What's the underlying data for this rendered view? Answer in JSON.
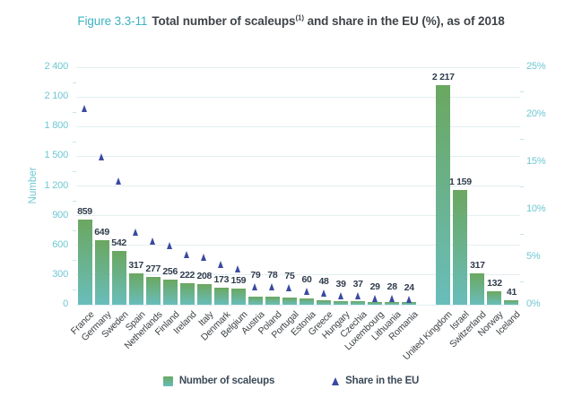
{
  "title": {
    "prefix": "Figure 3.3-11",
    "main": "Total number of scaleups",
    "superscript": "(1)",
    "suffix": " and share in the EU (%), as of 2018"
  },
  "axes": {
    "left": {
      "title": "Number",
      "ticks": [
        "0",
        "300",
        "600",
        "900",
        "1 200",
        "1 500",
        "1 800",
        "2 100",
        "2 400"
      ]
    },
    "right": {
      "ticks": [
        "0%",
        "5%",
        "10%",
        "15%",
        "20%",
        "25%"
      ]
    }
  },
  "legend": [
    {
      "label": "Number of scaleups",
      "marker": "square"
    },
    {
      "label": "Share in the EU",
      "marker": "triangle"
    }
  ],
  "colors": {
    "title_accent": "#3db2c2",
    "title_text": "#3f4449",
    "axis_teal": "#6ec7d2",
    "bar_top": "#6ba760",
    "bar_bottom": "#69bdbb",
    "triangle": "#3a4aa0",
    "value_label": "#2f3c4c",
    "category_label": "#3e4347",
    "gridline": "#e3eff1"
  },
  "chart_data": {
    "type": "bar",
    "title": "Total number of scaleups(1) and share in the EU (%), as of 2018",
    "categories": [
      "France",
      "Germany",
      "Sweden",
      "Spain",
      "Netherlands",
      "Finland",
      "Ireland",
      "Italy",
      "Denmark",
      "Belgium",
      "Austria",
      "Poland",
      "Portugal",
      "Estonia",
      "Greece",
      "Hungary",
      "Czechia",
      "Luxembourg",
      "Lithuania",
      "Romania",
      "United Kingdom",
      "Israel",
      "Switzerland",
      "Norway",
      "Iceland"
    ],
    "series": [
      {
        "name": "Number of scaleups",
        "type": "bar",
        "axis": "left",
        "values": [
          859,
          649,
          542,
          317,
          277,
          256,
          222,
          208,
          173,
          159,
          79,
          78,
          75,
          60,
          48,
          39,
          37,
          29,
          28,
          24,
          2217,
          1159,
          317,
          132,
          41
        ]
      },
      {
        "name": "Share in the EU",
        "type": "scatter-triangle",
        "axis": "right",
        "values": [
          20.7,
          15.6,
          13.0,
          7.6,
          6.7,
          6.2,
          5.3,
          5.0,
          4.2,
          3.8,
          1.9,
          1.9,
          1.8,
          1.4,
          1.2,
          0.9,
          0.9,
          0.7,
          0.7,
          0.6,
          null,
          null,
          null,
          null,
          null
        ]
      }
    ],
    "left_ylim": [
      0,
      2400
    ],
    "right_ylim": [
      0,
      25
    ],
    "left_tick_step": 300,
    "right_tick_step": 5,
    "grid": true,
    "legend_position": "bottom",
    "group_gap_after_index": 19
  }
}
